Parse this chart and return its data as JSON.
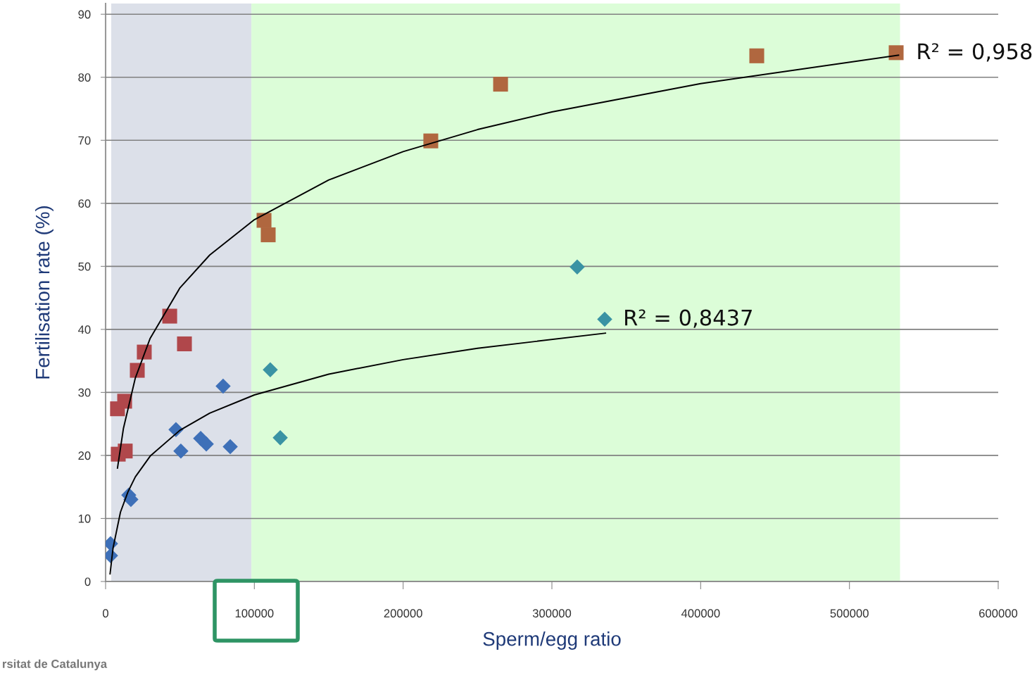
{
  "chart_data": {
    "type": "scatter",
    "xlabel": "Sperm/egg ratio",
    "ylabel": "Fertilisation rate (%)",
    "xlim": [
      0,
      600000
    ],
    "xticks": [
      0,
      100000,
      200000,
      300000,
      400000,
      500000,
      600000
    ],
    "ylim": [
      0,
      91.7
    ],
    "yticks": [
      0,
      10,
      20,
      30,
      40,
      50,
      60,
      70,
      80,
      90
    ],
    "grid": "y",
    "legend": false,
    "series": [
      {
        "marker": "square",
        "x": [
          8000,
          12800,
          8500,
          13200,
          21300,
          26000,
          43100,
          53000,
          106500,
          109300,
          218600,
          265500,
          437700,
          531400
        ],
        "values": [
          27.4,
          28.6,
          20.2,
          20.7,
          33.5,
          36.4,
          42.1,
          37.7,
          57.3,
          55.0,
          69.9,
          78.9,
          83.4,
          83.9
        ],
        "colors": [
          "#b0474b",
          "#b0474b",
          "#b0474b",
          "#b0474b",
          "#b0474b",
          "#b0474b",
          "#b0474b",
          "#b0474b",
          "#b0673f",
          "#b0673f",
          "#b0673f",
          "#b0673f",
          "#b0673f",
          "#b0673f"
        ]
      },
      {
        "marker": "diamond",
        "x": [
          3300,
          3300,
          15600,
          17000,
          47300,
          50600,
          63900,
          67700,
          79000,
          83800,
          110700,
          117400,
          317000,
          335500
        ],
        "values": [
          6.0,
          4.1,
          13.7,
          13.0,
          24.1,
          20.7,
          22.7,
          21.8,
          31.0,
          21.4,
          33.6,
          22.8,
          49.9,
          41.6
        ],
        "colors": [
          "#3e70b8",
          "#3e70b8",
          "#3e70b8",
          "#3e70b8",
          "#3e70b8",
          "#3e70b8",
          "#3e70b8",
          "#3e70b8",
          "#3e70b8",
          "#3e70b8",
          "#3a93a4",
          "#3a93a4",
          "#3a93a4",
          "#3a93a4"
        ]
      },
      {
        "type": "line",
        "color": "#000000",
        "line_style": "solid",
        "x": [
          8000,
          12000,
          20000,
          30000,
          50000,
          70000,
          100000,
          150000,
          200000,
          250000,
          300000,
          400000,
          533000
        ],
        "values": [
          18.0,
          24.3,
          32.3,
          38.6,
          46.6,
          51.8,
          57.4,
          63.7,
          68.2,
          71.7,
          74.5,
          79.0,
          83.5
        ]
      },
      {
        "type": "line",
        "color": "#000000",
        "line_style": "solid",
        "x": [
          3000,
          5000,
          10000,
          15000,
          20000,
          30000,
          50000,
          70000,
          100000,
          150000,
          200000,
          250000,
          336000
        ],
        "values": [
          1.2,
          5.3,
          11.0,
          14.2,
          16.6,
          19.9,
          24.0,
          26.7,
          29.6,
          32.9,
          35.2,
          37.0,
          39.4
        ]
      }
    ],
    "bands": [
      {
        "axis": "x",
        "from": 3800,
        "to": 98000,
        "color": "#dce0e9"
      },
      {
        "axis": "x",
        "from": 98000,
        "to": 534000,
        "color": "#dcfdd8"
      }
    ],
    "annotations": [
      {
        "text": "R² = 0,958",
        "x": 533000,
        "y": 83.5
      },
      {
        "text": "R² = 0,8437",
        "x": 336000,
        "y": 39.4
      },
      "rsitat de Catalunya"
    ]
  }
}
